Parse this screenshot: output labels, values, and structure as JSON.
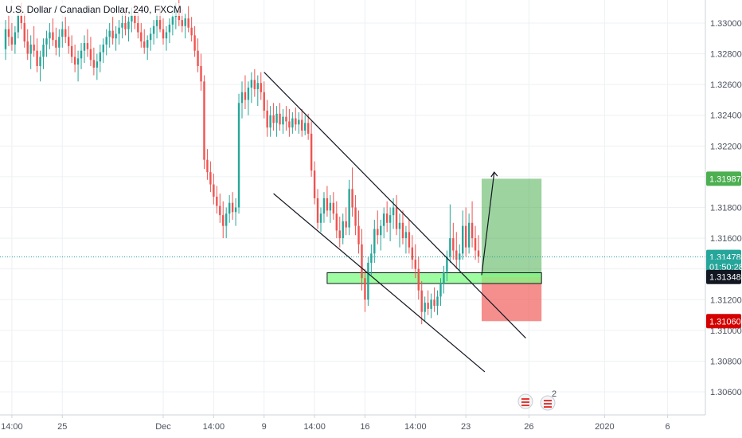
{
  "header": {
    "title": "U.S. Dollar / Canadian Dollar, 240, FXCM"
  },
  "colors": {
    "bull": "#26a69a",
    "bear": "#ef5350",
    "grid": "#eef0f3",
    "axis": "#cfd3da",
    "target_zone": "#4caf50",
    "stop_zone": "#ef5350",
    "entry_zone": "#7dfc80",
    "last_price_line": "#26a69a"
  },
  "price_tags": [
    {
      "label": "1.31987",
      "value": 1.31987,
      "bg": "#4caf50",
      "fg": "#ffffff"
    },
    {
      "label": "1.31478",
      "value": 1.31478,
      "bg": "#26a69a",
      "fg": "#ffffff"
    },
    {
      "label": "01:50:28",
      "value": 1.31415,
      "bg": "#26a69a",
      "fg": "#ffffff"
    },
    {
      "label": "1.31348",
      "value": 1.31348,
      "bg": "#131722",
      "fg": "#ffffff"
    },
    {
      "label": "1.31060",
      "value": 1.3106,
      "bg": "#d50000",
      "fg": "#ffffff"
    }
  ],
  "badges": {
    "flag_count": "2"
  },
  "chart_data": {
    "type": "candlestick",
    "title": "U.S. Dollar / Canadian Dollar, 240, FXCM",
    "ylim": [
      1.3045,
      1.3315
    ],
    "y_ticks": [
      "1.33000",
      "1.32800",
      "1.32600",
      "1.32400",
      "1.32200",
      "1.32000",
      "1.31800",
      "1.31600",
      "1.31400",
      "1.31200",
      "1.31000",
      "1.30800",
      "1.30600"
    ],
    "y_tick_values": [
      1.33,
      1.328,
      1.326,
      1.324,
      1.322,
      1.32,
      1.318,
      1.316,
      1.314,
      1.312,
      1.31,
      1.308,
      1.306
    ],
    "x_ticks": [
      {
        "label": "14:00",
        "bar": 2
      },
      {
        "label": "25",
        "bar": 18
      },
      {
        "label": "Dec",
        "bar": 50
      },
      {
        "label": "14:00",
        "bar": 66
      },
      {
        "label": "9",
        "bar": 82
      },
      {
        "label": "14:00",
        "bar": 98
      },
      {
        "label": "16",
        "bar": 114
      },
      {
        "label": "14:00",
        "bar": 130
      },
      {
        "label": "23",
        "bar": 146
      },
      {
        "label": "26",
        "bar": 166
      },
      {
        "label": "2020",
        "bar": 190
      },
      {
        "label": "6",
        "bar": 210
      }
    ],
    "last_price": 1.31478,
    "candles": [
      [
        1.3283,
        1.3302,
        1.3276,
        1.3296
      ],
      [
        1.3296,
        1.3305,
        1.3285,
        1.3291
      ],
      [
        1.3291,
        1.33,
        1.3282,
        1.3286
      ],
      [
        1.3286,
        1.3298,
        1.328,
        1.3294
      ],
      [
        1.3294,
        1.331,
        1.329,
        1.3305
      ],
      [
        1.3305,
        1.3313,
        1.3296,
        1.33
      ],
      [
        1.33,
        1.3306,
        1.3284,
        1.3288
      ],
      [
        1.3288,
        1.3296,
        1.3276,
        1.328
      ],
      [
        1.328,
        1.3292,
        1.327,
        1.3286
      ],
      [
        1.3286,
        1.3298,
        1.3278,
        1.3282
      ],
      [
        1.3282,
        1.329,
        1.3268,
        1.3272
      ],
      [
        1.3272,
        1.3282,
        1.3262,
        1.3278
      ],
      [
        1.3278,
        1.329,
        1.327,
        1.3286
      ],
      [
        1.3286,
        1.3295,
        1.3278,
        1.329
      ],
      [
        1.329,
        1.33,
        1.3283,
        1.3294
      ],
      [
        1.3294,
        1.3303,
        1.3285,
        1.3289
      ],
      [
        1.3289,
        1.3297,
        1.3279,
        1.3284
      ],
      [
        1.3284,
        1.3296,
        1.3278,
        1.3291
      ],
      [
        1.3291,
        1.3301,
        1.3284,
        1.3296
      ],
      [
        1.3296,
        1.3304,
        1.3287,
        1.3291
      ],
      [
        1.3291,
        1.3298,
        1.328,
        1.3285
      ],
      [
        1.3285,
        1.3292,
        1.3274,
        1.3278
      ],
      [
        1.3278,
        1.3286,
        1.3268,
        1.3273
      ],
      [
        1.3273,
        1.3282,
        1.3262,
        1.3277
      ],
      [
        1.3277,
        1.3287,
        1.327,
        1.3282
      ],
      [
        1.3282,
        1.3292,
        1.3274,
        1.3287
      ],
      [
        1.3287,
        1.3296,
        1.3278,
        1.3283
      ],
      [
        1.3283,
        1.3291,
        1.3272,
        1.3276
      ],
      [
        1.3276,
        1.3284,
        1.3266,
        1.3271
      ],
      [
        1.3271,
        1.328,
        1.3263,
        1.3275
      ],
      [
        1.3275,
        1.3286,
        1.3268,
        1.3281
      ],
      [
        1.3281,
        1.329,
        1.3274,
        1.3286
      ],
      [
        1.3286,
        1.3296,
        1.3279,
        1.3291
      ],
      [
        1.3291,
        1.33,
        1.3284,
        1.3295
      ],
      [
        1.3295,
        1.3304,
        1.3286,
        1.329
      ],
      [
        1.329,
        1.3298,
        1.3282,
        1.3293
      ],
      [
        1.3293,
        1.3302,
        1.3286,
        1.3297
      ],
      [
        1.3297,
        1.3306,
        1.329,
        1.33
      ],
      [
        1.33,
        1.3308,
        1.3292,
        1.3296
      ],
      [
        1.3296,
        1.3304,
        1.3288,
        1.3301
      ],
      [
        1.3301,
        1.331,
        1.3294,
        1.3305
      ],
      [
        1.3305,
        1.3312,
        1.3296,
        1.33
      ],
      [
        1.33,
        1.3308,
        1.329,
        1.3294
      ],
      [
        1.3294,
        1.33,
        1.3284,
        1.3288
      ],
      [
        1.3288,
        1.3296,
        1.328,
        1.3284
      ],
      [
        1.3284,
        1.3292,
        1.3276,
        1.3289
      ],
      [
        1.3289,
        1.3297,
        1.3282,
        1.3293
      ],
      [
        1.3293,
        1.3302,
        1.3286,
        1.3298
      ],
      [
        1.3298,
        1.3306,
        1.329,
        1.3302
      ],
      [
        1.3302,
        1.331,
        1.3294,
        1.3296
      ],
      [
        1.3296,
        1.3303,
        1.3286,
        1.329
      ],
      [
        1.329,
        1.3298,
        1.3282,
        1.3294
      ],
      [
        1.3294,
        1.3303,
        1.3287,
        1.3299
      ],
      [
        1.3299,
        1.3308,
        1.3292,
        1.3304
      ],
      [
        1.3304,
        1.3313,
        1.3296,
        1.3308
      ],
      [
        1.3308,
        1.3315,
        1.3298,
        1.3302
      ],
      [
        1.3302,
        1.3309,
        1.3294,
        1.3298
      ],
      [
        1.3298,
        1.3306,
        1.329,
        1.3303
      ],
      [
        1.3303,
        1.3311,
        1.3294,
        1.3297
      ],
      [
        1.3297,
        1.3304,
        1.3288,
        1.3292
      ],
      [
        1.3292,
        1.3298,
        1.3278,
        1.3282
      ],
      [
        1.3282,
        1.329,
        1.3268,
        1.3272
      ],
      [
        1.3272,
        1.328,
        1.3256,
        1.3262
      ],
      [
        1.3262,
        1.3266,
        1.3205,
        1.3211
      ],
      [
        1.3211,
        1.3218,
        1.3198,
        1.3203
      ],
      [
        1.3203,
        1.321,
        1.319,
        1.3195
      ],
      [
        1.3195,
        1.3202,
        1.3182,
        1.3187
      ],
      [
        1.3187,
        1.3194,
        1.3176,
        1.3181
      ],
      [
        1.3181,
        1.3189,
        1.317,
        1.3175
      ],
      [
        1.3175,
        1.3184,
        1.316,
        1.3168
      ],
      [
        1.3168,
        1.318,
        1.316,
        1.3176
      ],
      [
        1.3176,
        1.3188,
        1.317,
        1.3183
      ],
      [
        1.3183,
        1.319,
        1.3172,
        1.3177
      ],
      [
        1.3177,
        1.3186,
        1.3168,
        1.318
      ],
      [
        1.318,
        1.3254,
        1.3176,
        1.3248
      ],
      [
        1.3248,
        1.3262,
        1.3238,
        1.3255
      ],
      [
        1.3255,
        1.3266,
        1.3244,
        1.325
      ],
      [
        1.325,
        1.3262,
        1.324,
        1.3258
      ],
      [
        1.3258,
        1.3268,
        1.3248,
        1.3263
      ],
      [
        1.3263,
        1.327,
        1.3252,
        1.3257
      ],
      [
        1.3257,
        1.3266,
        1.3246,
        1.3261
      ],
      [
        1.3261,
        1.3268,
        1.325,
        1.3255
      ],
      [
        1.3255,
        1.3262,
        1.3238,
        1.3243
      ],
      [
        1.3243,
        1.325,
        1.3226,
        1.3232
      ],
      [
        1.3232,
        1.3246,
        1.3226,
        1.324
      ],
      [
        1.324,
        1.3248,
        1.323,
        1.3235
      ],
      [
        1.3235,
        1.3246,
        1.3226,
        1.3241
      ],
      [
        1.3241,
        1.3248,
        1.323,
        1.3234
      ],
      [
        1.3234,
        1.3244,
        1.3228,
        1.3239
      ],
      [
        1.3239,
        1.3246,
        1.323,
        1.3236
      ],
      [
        1.3236,
        1.3244,
        1.3226,
        1.3232
      ],
      [
        1.3232,
        1.3242,
        1.3228,
        1.3238
      ],
      [
        1.3238,
        1.3245,
        1.323,
        1.3234
      ],
      [
        1.3234,
        1.3242,
        1.3228,
        1.3237
      ],
      [
        1.3237,
        1.3244,
        1.3226,
        1.323
      ],
      [
        1.323,
        1.324,
        1.3227,
        1.3235
      ],
      [
        1.3235,
        1.3241,
        1.3224,
        1.3228
      ],
      [
        1.3228,
        1.3236,
        1.32,
        1.3204
      ],
      [
        1.3204,
        1.321,
        1.3182,
        1.3186
      ],
      [
        1.3186,
        1.3192,
        1.3166,
        1.317
      ],
      [
        1.317,
        1.318,
        1.3164,
        1.3176
      ],
      [
        1.3176,
        1.319,
        1.317,
        1.3186
      ],
      [
        1.3186,
        1.3194,
        1.3174,
        1.3178
      ],
      [
        1.3178,
        1.3188,
        1.317,
        1.3183
      ],
      [
        1.3183,
        1.319,
        1.3172,
        1.3176
      ],
      [
        1.3176,
        1.3184,
        1.316,
        1.3165
      ],
      [
        1.3165,
        1.3174,
        1.3154,
        1.316
      ],
      [
        1.316,
        1.3176,
        1.3156,
        1.3171
      ],
      [
        1.3171,
        1.318,
        1.3162,
        1.3167
      ],
      [
        1.3167,
        1.3198,
        1.3162,
        1.3192
      ],
      [
        1.3192,
        1.3206,
        1.3174,
        1.318
      ],
      [
        1.318,
        1.3188,
        1.3162,
        1.3168
      ],
      [
        1.3168,
        1.3178,
        1.315,
        1.3156
      ],
      [
        1.3156,
        1.3166,
        1.3126,
        1.3134
      ],
      [
        1.3134,
        1.314,
        1.3112,
        1.312
      ],
      [
        1.312,
        1.3148,
        1.3116,
        1.3144
      ],
      [
        1.3144,
        1.3156,
        1.3136,
        1.315
      ],
      [
        1.315,
        1.3172,
        1.3144,
        1.3166
      ],
      [
        1.3166,
        1.3178,
        1.3156,
        1.3162
      ],
      [
        1.3162,
        1.3172,
        1.3152,
        1.3168
      ],
      [
        1.3168,
        1.318,
        1.316,
        1.3176
      ],
      [
        1.3176,
        1.3184,
        1.3164,
        1.317
      ],
      [
        1.317,
        1.318,
        1.3158,
        1.3175
      ],
      [
        1.3175,
        1.3186,
        1.3166,
        1.318
      ],
      [
        1.318,
        1.3188,
        1.3162,
        1.3166
      ],
      [
        1.3166,
        1.3176,
        1.3154,
        1.317
      ],
      [
        1.317,
        1.3178,
        1.3156,
        1.316
      ],
      [
        1.316,
        1.3168,
        1.315,
        1.3164
      ],
      [
        1.3164,
        1.3172,
        1.315,
        1.3154
      ],
      [
        1.3154,
        1.3162,
        1.314,
        1.3146
      ],
      [
        1.3146,
        1.3156,
        1.3134,
        1.314
      ],
      [
        1.314,
        1.3148,
        1.312,
        1.3126
      ],
      [
        1.3126,
        1.3132,
        1.3104,
        1.3112
      ],
      [
        1.3112,
        1.3122,
        1.3106,
        1.3118
      ],
      [
        1.3118,
        1.3126,
        1.311,
        1.3114
      ],
      [
        1.3114,
        1.3124,
        1.3108,
        1.312
      ],
      [
        1.312,
        1.3128,
        1.3112,
        1.3116
      ],
      [
        1.3116,
        1.3126,
        1.311,
        1.3122
      ],
      [
        1.3122,
        1.3134,
        1.3116,
        1.313
      ],
      [
        1.313,
        1.3142,
        1.3124,
        1.3138
      ],
      [
        1.3138,
        1.3152,
        1.3132,
        1.3148
      ],
      [
        1.3148,
        1.3182,
        1.3144,
        1.316
      ],
      [
        1.316,
        1.317,
        1.3146,
        1.3152
      ],
      [
        1.3152,
        1.3164,
        1.314,
        1.3146
      ],
      [
        1.3146,
        1.3156,
        1.3138,
        1.315
      ],
      [
        1.315,
        1.3178,
        1.3146,
        1.3168
      ],
      [
        1.3168,
        1.318,
        1.3148,
        1.3154
      ],
      [
        1.3154,
        1.3176,
        1.315,
        1.317
      ],
      [
        1.317,
        1.3184,
        1.3154,
        1.316
      ],
      [
        1.316,
        1.3168,
        1.3146,
        1.3152
      ],
      [
        1.3152,
        1.3162,
        1.3144,
        1.3148
      ]
    ],
    "overlays": {
      "channel_upper": [
        {
          "bar": 82,
          "price": 1.3268
        },
        {
          "bar": 165,
          "price": 1.3095
        }
      ],
      "channel_lower": [
        {
          "bar": 85,
          "price": 1.3189
        },
        {
          "bar": 152,
          "price": 1.3073
        }
      ],
      "entry_zone": {
        "from_bar": 102,
        "to_bar": 170,
        "top": 1.31375,
        "bottom": 1.31305
      },
      "long_position": {
        "from_bar": 151,
        "to_bar": 170,
        "entry": 1.31348,
        "target": 1.31987,
        "stop": 1.3106
      },
      "arrow": [
        {
          "bar": 151,
          "price": 1.3136
        },
        {
          "bar": 155,
          "price": 1.3203
        }
      ]
    }
  }
}
